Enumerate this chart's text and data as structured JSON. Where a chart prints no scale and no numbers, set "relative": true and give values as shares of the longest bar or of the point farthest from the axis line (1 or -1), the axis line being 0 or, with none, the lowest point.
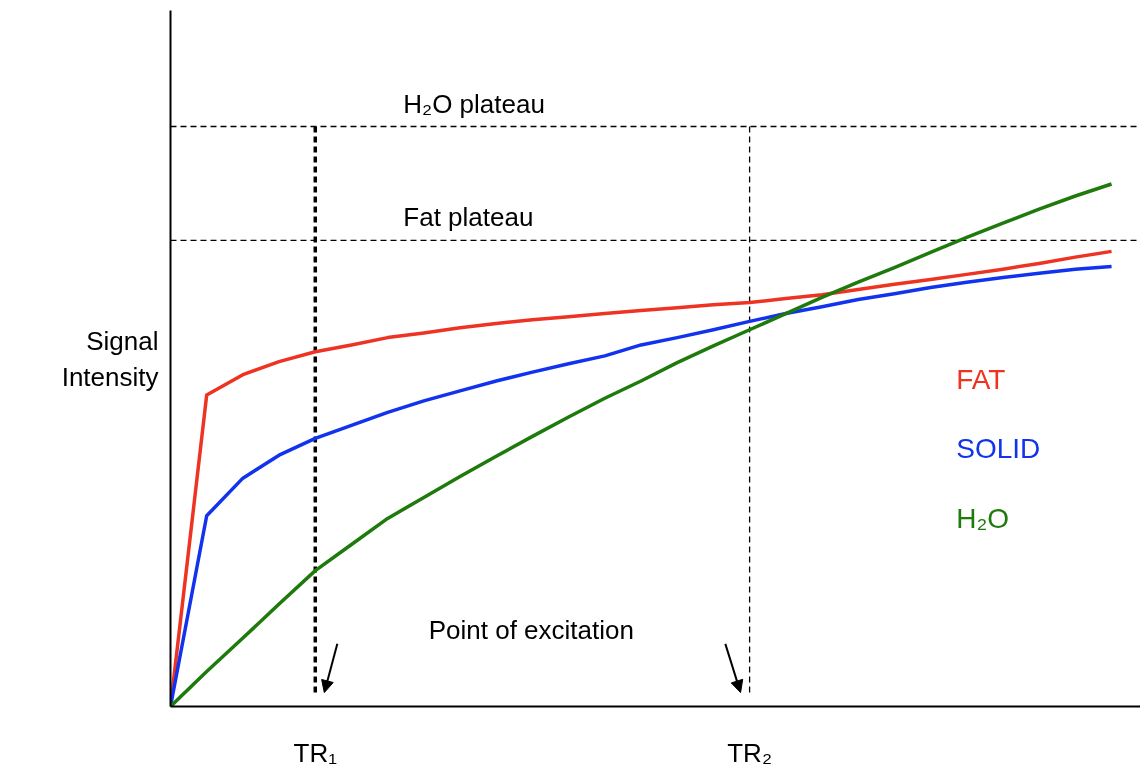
{
  "chart_data": {
    "type": "line",
    "relative": true,
    "ylabel": "Signal Intensity",
    "categories": [
      null,
      null,
      null,
      null,
      "TR₁",
      null,
      null,
      null,
      null,
      null,
      null,
      null,
      null,
      null,
      null,
      null,
      "TR₂",
      null,
      null,
      null,
      null,
      null,
      null,
      null,
      null,
      null,
      null
    ],
    "grid": false,
    "legend": "right",
    "marker": "none",
    "line_style": "solid",
    "series": [
      {
        "name": "FAT",
        "color": "#ee3322",
        "values": [
          0,
          0.596,
          0.635,
          0.66,
          0.679,
          0.692,
          0.706,
          0.715,
          0.725,
          0.733,
          0.74,
          0.746,
          0.752,
          0.758,
          0.763,
          0.769,
          0.773,
          0.781,
          0.788,
          0.798,
          0.808,
          0.817,
          0.827,
          0.837,
          0.848,
          0.86,
          0.871
        ]
      },
      {
        "name": "SOLID",
        "color": "#1133ee",
        "values": [
          0,
          0.365,
          0.437,
          0.481,
          0.513,
          0.538,
          0.563,
          0.585,
          0.604,
          0.623,
          0.64,
          0.656,
          0.671,
          0.692,
          0.706,
          0.721,
          0.737,
          0.752,
          0.765,
          0.779,
          0.79,
          0.802,
          0.812,
          0.821,
          0.829,
          0.837,
          0.842
        ]
      },
      {
        "name": "H₂O",
        "color": "#1e7a0c",
        "values": [
          0,
          0.067,
          0.131,
          0.196,
          0.26,
          0.31,
          0.36,
          0.4,
          0.44,
          0.479,
          0.517,
          0.554,
          0.59,
          0.623,
          0.658,
          0.69,
          0.721,
          0.752,
          0.783,
          0.812,
          0.84,
          0.869,
          0.898,
          0.925,
          0.952,
          0.977,
          1.0
        ]
      }
    ],
    "ref_lines": [
      {
        "axis": "y",
        "value": 1.11,
        "label": "H₂O plateau",
        "line_style": "dashed"
      },
      {
        "axis": "y",
        "value": 0.892,
        "label": "Fat plateau",
        "line_style": "dashed"
      },
      {
        "axis": "x",
        "value": "TR₁",
        "line_style": "dashed"
      },
      {
        "axis": "x",
        "value": "TR₂",
        "line_style": "dashed"
      }
    ],
    "annotations": [
      "Point of excitation"
    ]
  }
}
